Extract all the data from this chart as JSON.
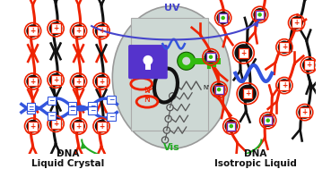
{
  "title_left": "DNA\nLiquid Crystal",
  "title_right": "DNA\nIsotropic Liquid",
  "uv_label": "UV",
  "vis_label": "Vis",
  "bg_color": "#ffffff",
  "center_panel_color": "#cdd8d4",
  "lock_color": "#5533cc",
  "key_color": "#33bb11",
  "red_color": "#ee2200",
  "black_color": "#111111",
  "blue_color": "#3355dd",
  "purple_small": "#6633bb",
  "uv_arrow_color": "#4444cc",
  "vis_arrow_color": "#22aa22",
  "gray_chain": "#555555"
}
